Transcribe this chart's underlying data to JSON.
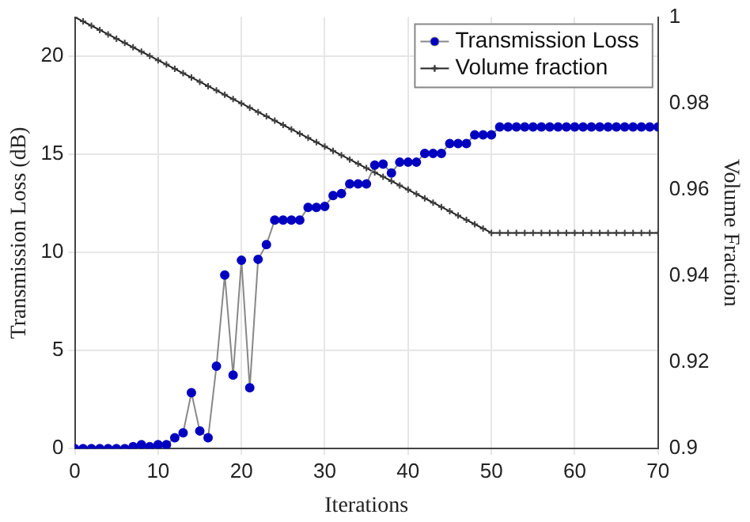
{
  "chart_data": {
    "type": "line",
    "xlabel": "Iterations",
    "ylabel": "Transmission Loss (dB)",
    "y2label": "Volume Fraction",
    "x": [
      0,
      1,
      2,
      3,
      4,
      5,
      6,
      7,
      8,
      9,
      10,
      11,
      12,
      13,
      14,
      15,
      16,
      17,
      18,
      19,
      20,
      21,
      22,
      23,
      24,
      25,
      26,
      27,
      28,
      29,
      30,
      31,
      32,
      33,
      34,
      35,
      36,
      37,
      38,
      39,
      40,
      41,
      42,
      43,
      44,
      45,
      46,
      47,
      48,
      49,
      50,
      51,
      52,
      53,
      54,
      55,
      56,
      57,
      58,
      59,
      60,
      61,
      62,
      63,
      64,
      65,
      66,
      67,
      68,
      69,
      70
    ],
    "series": [
      {
        "name": "Transmission Loss",
        "color": "#0000c0",
        "marker": "circle",
        "values": [
          0,
          0,
          0,
          0,
          0,
          0,
          0,
          0.1,
          0.2,
          0.1,
          0.2,
          0.2,
          0.55,
          0.8,
          2.85,
          0.9,
          0.55,
          4.2,
          8.85,
          3.75,
          9.6,
          3.1,
          9.65,
          10.4,
          11.65,
          11.65,
          11.65,
          11.65,
          12.3,
          12.3,
          12.35,
          12.9,
          13.0,
          13.5,
          13.5,
          13.5,
          14.45,
          14.5,
          14.05,
          14.6,
          14.6,
          14.6,
          15.05,
          15.05,
          15.05,
          15.55,
          15.55,
          15.55,
          16.0,
          16.0,
          16.0,
          16.4,
          16.4,
          16.4,
          16.4,
          16.4,
          16.4,
          16.4,
          16.4,
          16.4,
          16.4,
          16.4,
          16.4,
          16.4,
          16.4,
          16.4,
          16.4,
          16.4,
          16.4,
          16.4,
          16.4
        ]
      },
      {
        "name": "Volume fraction",
        "color": "#404040",
        "marker": "cross",
        "axis": "y2",
        "values": [
          1,
          0.999,
          0.998,
          0.997,
          0.996,
          0.995,
          0.994,
          0.993,
          0.992,
          0.991,
          0.99,
          0.989,
          0.988,
          0.987,
          0.986,
          0.985,
          0.984,
          0.983,
          0.982,
          0.981,
          0.98,
          0.979,
          0.978,
          0.977,
          0.976,
          0.975,
          0.974,
          0.973,
          0.972,
          0.971,
          0.97,
          0.969,
          0.968,
          0.967,
          0.966,
          0.965,
          0.964,
          0.963,
          0.962,
          0.961,
          0.96,
          0.959,
          0.958,
          0.957,
          0.956,
          0.955,
          0.954,
          0.953,
          0.952,
          0.951,
          0.95,
          0.95,
          0.95,
          0.95,
          0.95,
          0.95,
          0.95,
          0.95,
          0.95,
          0.95,
          0.95,
          0.95,
          0.95,
          0.95,
          0.95,
          0.95,
          0.95,
          0.95,
          0.95,
          0.95,
          0.95
        ]
      }
    ],
    "xlim": [
      0,
      70
    ],
    "xticks": [
      0,
      10,
      20,
      30,
      40,
      50,
      60,
      70
    ],
    "ylim": [
      0,
      22
    ],
    "yticks": [
      0,
      5,
      10,
      15,
      20
    ],
    "y2lim": [
      0.9,
      1
    ],
    "y2ticks": [
      0.9,
      0.92,
      0.94,
      0.96,
      0.98,
      1
    ],
    "grid": true,
    "legend": "top right"
  }
}
